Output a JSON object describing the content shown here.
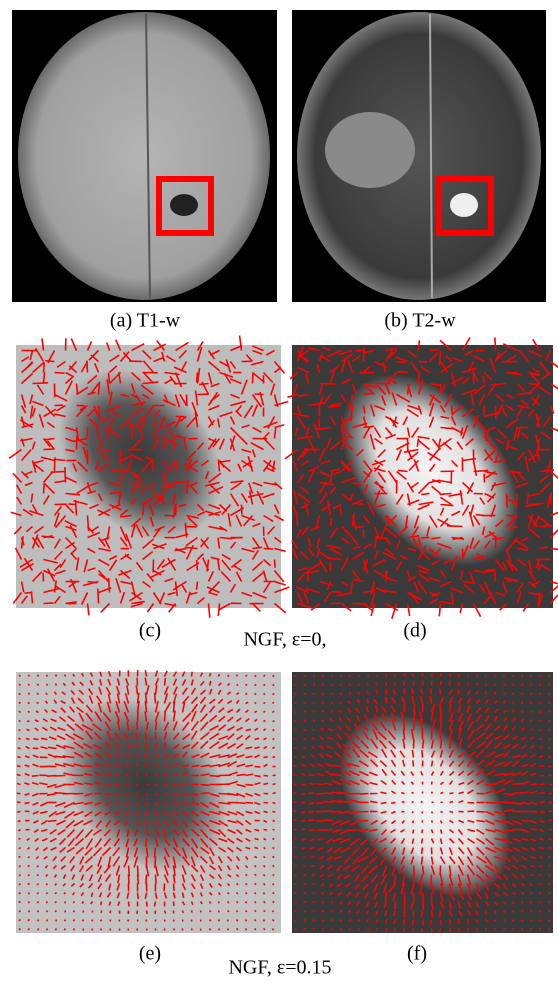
{
  "panels": [
    {
      "caption": "(a) T1-w"
    },
    {
      "caption": "(b) T2-w"
    },
    {
      "caption": "(c)"
    },
    {
      "caption": "(d)"
    },
    {
      "caption": "(e)"
    },
    {
      "caption": "(f)"
    }
  ],
  "rows": [
    {
      "label": "NGF, ε=0,"
    },
    {
      "label": "NGF, ε=0.15"
    }
  ]
}
